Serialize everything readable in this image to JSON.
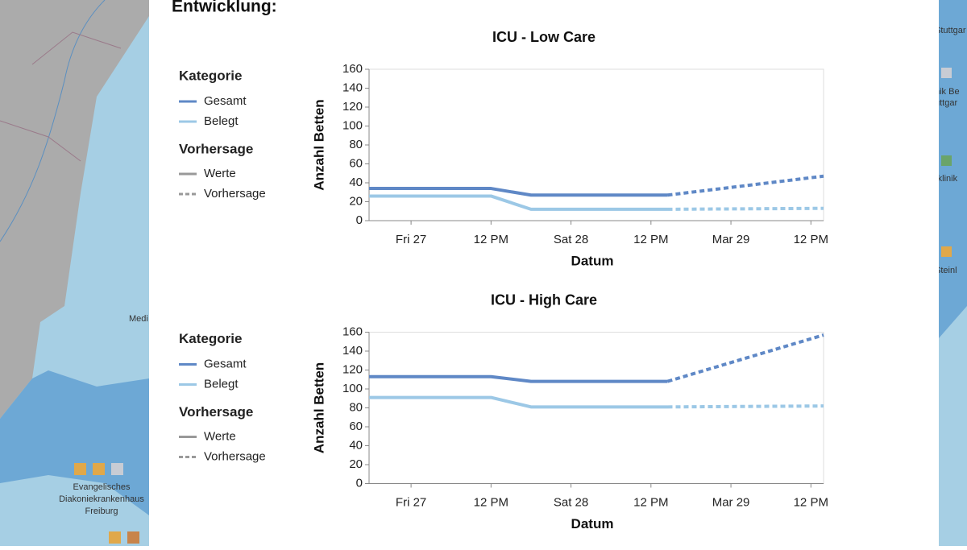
{
  "heading": "Entwicklung:",
  "map_labels": {
    "left": [
      "Medi",
      "Evangelisches",
      "Diakoniekrankenhaus",
      "Freiburg"
    ],
    "right": [
      "Stuttgar",
      "nik Be",
      "uttgar",
      "rklinik",
      "Steinl"
    ]
  },
  "chart_data": [
    {
      "type": "line",
      "title": "ICU - Low Care",
      "x_label": "Datum",
      "y_label": "Anzahl Betten",
      "xlim": [
        -6.3,
        61.9
      ],
      "ylim": [
        0,
        160
      ],
      "xticks": [
        {
          "value": 0,
          "label": "Fri 27"
        },
        {
          "value": 12,
          "label": "12 PM"
        },
        {
          "value": 24,
          "label": "Sat 28"
        },
        {
          "value": 36,
          "label": "12 PM"
        },
        {
          "value": 48,
          "label": "Mar 29"
        },
        {
          "value": 60,
          "label": "12 PM"
        }
      ],
      "yticks": [
        0,
        20,
        40,
        60,
        80,
        100,
        120,
        140,
        160
      ],
      "grid": false,
      "legend_title": "Kategorie",
      "style_legend": {
        "title": "Vorhersage",
        "solid": "Werte",
        "dashed": "Vorhersage"
      },
      "series": [
        {
          "name": "Gesamt",
          "color": "#5f88c6",
          "x": [
            -6.3,
            12,
            18,
            38.5
          ],
          "values": [
            34,
            34,
            27,
            27
          ],
          "forecast_x": [
            38.5,
            61.9
          ],
          "forecast": [
            27,
            47
          ]
        },
        {
          "name": "Belegt",
          "color": "#9cc8e6",
          "x": [
            -6.3,
            12,
            18,
            38.5
          ],
          "values": [
            26,
            26,
            12,
            12
          ],
          "forecast_x": [
            38.5,
            61.9
          ],
          "forecast": [
            12,
            13
          ]
        }
      ]
    },
    {
      "type": "line",
      "title": "ICU - High Care",
      "x_label": "Datum",
      "y_label": "Anzahl Betten",
      "xlim": [
        -6.3,
        61.9
      ],
      "ylim": [
        0,
        160
      ],
      "xticks": [
        {
          "value": 0,
          "label": "Fri 27"
        },
        {
          "value": 12,
          "label": "12 PM"
        },
        {
          "value": 24,
          "label": "Sat 28"
        },
        {
          "value": 36,
          "label": "12 PM"
        },
        {
          "value": 48,
          "label": "Mar 29"
        },
        {
          "value": 60,
          "label": "12 PM"
        }
      ],
      "yticks": [
        0,
        20,
        40,
        60,
        80,
        100,
        120,
        140,
        160
      ],
      "grid": false,
      "legend_title": "Kategorie",
      "style_legend": {
        "title": "Vorhersage",
        "solid": "Werte",
        "dashed": "Vorhersage"
      },
      "series": [
        {
          "name": "Gesamt",
          "color": "#5f88c6",
          "x": [
            -6.3,
            12,
            18,
            38.5
          ],
          "values": [
            113,
            113,
            108,
            108
          ],
          "forecast_x": [
            38.5,
            61.9
          ],
          "forecast": [
            108,
            157
          ]
        },
        {
          "name": "Belegt",
          "color": "#9cc8e6",
          "x": [
            -6.3,
            12,
            18,
            38.5
          ],
          "values": [
            91,
            91,
            81,
            81
          ],
          "forecast_x": [
            38.5,
            61.9
          ],
          "forecast": [
            81,
            82
          ]
        }
      ]
    }
  ]
}
